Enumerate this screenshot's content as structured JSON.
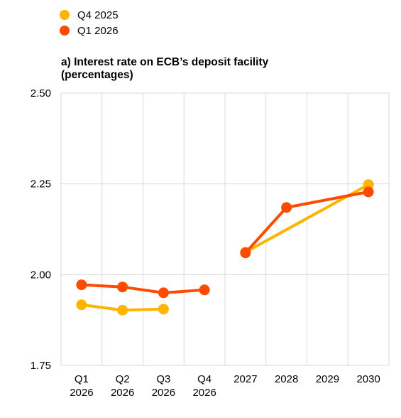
{
  "legend": {
    "items": [
      {
        "label": "Q4 2025",
        "color": "#FFB400"
      },
      {
        "label": "Q1 2026",
        "color": "#FF4B00"
      }
    ]
  },
  "chart_data": {
    "type": "line",
    "title": "a) Interest rate on ECB’s deposit facility",
    "subtitle": "(percentages)",
    "categories": [
      [
        "Q1",
        "2026"
      ],
      [
        "Q2",
        "2026"
      ],
      [
        "Q3",
        "2026"
      ],
      [
        "Q4",
        "2026"
      ],
      [
        "2027"
      ],
      [
        "2028"
      ],
      [
        "2029"
      ],
      [
        "2030"
      ]
    ],
    "ylim": [
      1.75,
      2.5
    ],
    "yticks": [
      "1.75",
      "2.00",
      "2.25",
      "2.50"
    ],
    "ytick_values": [
      1.75,
      2.0,
      2.25,
      2.5
    ],
    "grid": true,
    "legend_position": "top-left",
    "series": [
      {
        "name": "Q4 2025",
        "color": "#FFB400",
        "values": [
          1.917,
          1.902,
          1.905,
          null,
          2.062,
          null,
          null,
          2.248
        ],
        "segments": [
          [
            0,
            1,
            2
          ],
          [
            4,
            7
          ]
        ]
      },
      {
        "name": "Q1 2026",
        "color": "#FF4B00",
        "values": [
          1.972,
          1.966,
          1.95,
          1.958,
          2.06,
          2.185,
          null,
          2.228
        ],
        "segments": [
          [
            0,
            1,
            2,
            3
          ],
          [
            4,
            5,
            7
          ]
        ]
      }
    ]
  }
}
